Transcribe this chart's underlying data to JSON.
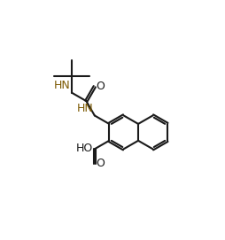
{
  "bg_color": "#ffffff",
  "line_color": "#1a1a1a",
  "bond_lw": 1.5,
  "figsize": [
    2.54,
    2.71
  ],
  "dpi": 100,
  "font_size": 9,
  "hn_color": "#7B5800",
  "r_hex": 0.75,
  "lhc": [
    5.5,
    4.8
  ],
  "xlim": [
    0,
    10
  ],
  "ylim": [
    0,
    10.7
  ]
}
